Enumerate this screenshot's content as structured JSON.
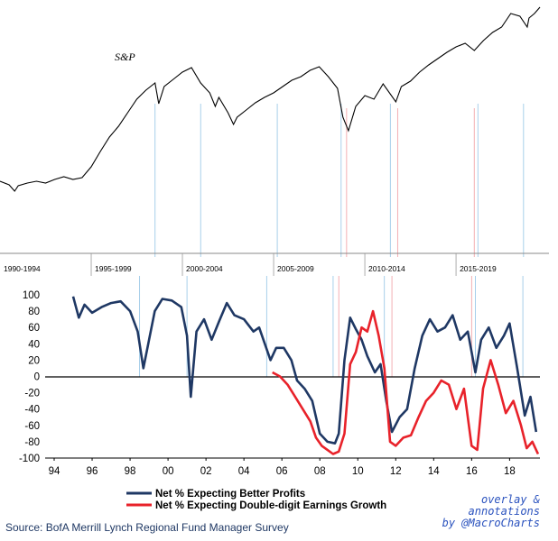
{
  "chart_data": [
    {
      "type": "line",
      "title": "S&P",
      "series": [
        {
          "name": "S&P",
          "color": "#000000"
        }
      ],
      "period_labels": [
        "1990-1994",
        "1995-1999",
        "2000-2004",
        "2005-2009",
        "2010-2014",
        "2015-2019"
      ],
      "x_range": [
        1990,
        2019.6
      ],
      "points": [
        [
          1990.0,
          201
        ],
        [
          1990.5,
          205
        ],
        [
          1990.8,
          212
        ],
        [
          1991.0,
          206
        ],
        [
          1991.5,
          203
        ],
        [
          1992.0,
          201
        ],
        [
          1992.5,
          203
        ],
        [
          1993.0,
          199
        ],
        [
          1993.5,
          196
        ],
        [
          1994.0,
          199
        ],
        [
          1994.5,
          197
        ],
        [
          1995.0,
          185
        ],
        [
          1995.5,
          168
        ],
        [
          1996.0,
          152
        ],
        [
          1996.5,
          140
        ],
        [
          1997.0,
          125
        ],
        [
          1997.5,
          110
        ],
        [
          1998.0,
          100
        ],
        [
          1998.5,
          92
        ],
        [
          1998.7,
          115
        ],
        [
          1999.0,
          96
        ],
        [
          1999.5,
          88
        ],
        [
          2000.0,
          80
        ],
        [
          2000.5,
          75
        ],
        [
          2001.0,
          92
        ],
        [
          2001.5,
          103
        ],
        [
          2001.8,
          118
        ],
        [
          2002.0,
          108
        ],
        [
          2002.5,
          125
        ],
        [
          2002.8,
          138
        ],
        [
          2003.0,
          130
        ],
        [
          2003.5,
          122
        ],
        [
          2004.0,
          114
        ],
        [
          2004.5,
          108
        ],
        [
          2005.0,
          103
        ],
        [
          2005.5,
          96
        ],
        [
          2006.0,
          89
        ],
        [
          2006.5,
          85
        ],
        [
          2007.0,
          78
        ],
        [
          2007.5,
          74
        ],
        [
          2008.0,
          85
        ],
        [
          2008.5,
          98
        ],
        [
          2008.8,
          130
        ],
        [
          2009.1,
          145
        ],
        [
          2009.5,
          118
        ],
        [
          2010.0,
          106
        ],
        [
          2010.5,
          110
        ],
        [
          2011.0,
          93
        ],
        [
          2011.7,
          113
        ],
        [
          2012.0,
          96
        ],
        [
          2012.5,
          90
        ],
        [
          2013.0,
          80
        ],
        [
          2013.5,
          72
        ],
        [
          2014.0,
          65
        ],
        [
          2014.5,
          58
        ],
        [
          2015.0,
          52
        ],
        [
          2015.5,
          48
        ],
        [
          2016.0,
          56
        ],
        [
          2016.5,
          45
        ],
        [
          2017.0,
          36
        ],
        [
          2017.5,
          30
        ],
        [
          2018.0,
          15
        ],
        [
          2018.5,
          18
        ],
        [
          2018.9,
          30
        ],
        [
          2019.0,
          20
        ],
        [
          2019.3,
          15
        ],
        [
          2019.6,
          8
        ]
      ]
    },
    {
      "type": "line",
      "x_ticks": [
        "94",
        "96",
        "98",
        "00",
        "02",
        "04",
        "06",
        "08",
        "10",
        "12",
        "14",
        "16",
        "18"
      ],
      "y_ticks": [
        100,
        80,
        60,
        40,
        20,
        0,
        -20,
        -40,
        -60,
        -80,
        -100
      ],
      "ylim": [
        -100,
        100
      ],
      "x_range": [
        1994,
        2019.6
      ],
      "legend": [
        "Net % Expecting Better Profits",
        "Net % Expecting Double-digit Earnings Growth"
      ],
      "series": [
        {
          "name": "Net % Expecting Better Profits",
          "color": "#1f3864",
          "points": [
            [
              1995.0,
              98
            ],
            [
              1995.3,
              72
            ],
            [
              1995.6,
              88
            ],
            [
              1996.0,
              78
            ],
            [
              1996.5,
              85
            ],
            [
              1997.0,
              90
            ],
            [
              1997.5,
              92
            ],
            [
              1998.0,
              80
            ],
            [
              1998.4,
              55
            ],
            [
              1998.7,
              10
            ],
            [
              1999.0,
              45
            ],
            [
              1999.3,
              80
            ],
            [
              1999.7,
              95
            ],
            [
              2000.2,
              93
            ],
            [
              2000.7,
              85
            ],
            [
              2001.0,
              50
            ],
            [
              2001.2,
              -25
            ],
            [
              2001.5,
              55
            ],
            [
              2001.9,
              70
            ],
            [
              2002.3,
              45
            ],
            [
              2002.7,
              68
            ],
            [
              2003.1,
              90
            ],
            [
              2003.5,
              75
            ],
            [
              2004.0,
              70
            ],
            [
              2004.5,
              55
            ],
            [
              2004.8,
              60
            ],
            [
              2005.1,
              40
            ],
            [
              2005.4,
              20
            ],
            [
              2005.7,
              35
            ],
            [
              2006.1,
              35
            ],
            [
              2006.5,
              20
            ],
            [
              2006.8,
              -5
            ],
            [
              2007.2,
              -15
            ],
            [
              2007.6,
              -30
            ],
            [
              2008.0,
              -70
            ],
            [
              2008.4,
              -80
            ],
            [
              2008.8,
              -82
            ],
            [
              2009.0,
              -70
            ],
            [
              2009.3,
              20
            ],
            [
              2009.6,
              72
            ],
            [
              2009.9,
              58
            ],
            [
              2010.2,
              45
            ],
            [
              2010.5,
              25
            ],
            [
              2010.9,
              5
            ],
            [
              2011.2,
              15
            ],
            [
              2011.5,
              -30
            ],
            [
              2011.8,
              -68
            ],
            [
              2012.2,
              -50
            ],
            [
              2012.6,
              -40
            ],
            [
              2013.0,
              10
            ],
            [
              2013.4,
              50
            ],
            [
              2013.8,
              70
            ],
            [
              2014.2,
              55
            ],
            [
              2014.6,
              60
            ],
            [
              2015.0,
              75
            ],
            [
              2015.4,
              45
            ],
            [
              2015.8,
              55
            ],
            [
              2016.2,
              5
            ],
            [
              2016.5,
              45
            ],
            [
              2016.9,
              60
            ],
            [
              2017.3,
              35
            ],
            [
              2017.7,
              50
            ],
            [
              2018.0,
              65
            ],
            [
              2018.4,
              10
            ],
            [
              2018.8,
              -48
            ],
            [
              2019.1,
              -25
            ],
            [
              2019.4,
              -68
            ]
          ]
        },
        {
          "name": "Net % Expecting Double-digit Earnings Growth",
          "color": "#e8222a",
          "points": [
            [
              2005.5,
              5
            ],
            [
              2005.9,
              0
            ],
            [
              2006.3,
              -10
            ],
            [
              2006.7,
              -25
            ],
            [
              2007.1,
              -40
            ],
            [
              2007.5,
              -55
            ],
            [
              2007.8,
              -75
            ],
            [
              2008.1,
              -85
            ],
            [
              2008.4,
              -90
            ],
            [
              2008.7,
              -95
            ],
            [
              2009.0,
              -92
            ],
            [
              2009.3,
              -70
            ],
            [
              2009.6,
              15
            ],
            [
              2009.9,
              30
            ],
            [
              2010.2,
              60
            ],
            [
              2010.5,
              55
            ],
            [
              2010.8,
              80
            ],
            [
              2011.1,
              50
            ],
            [
              2011.4,
              10
            ],
            [
              2011.7,
              -80
            ],
            [
              2012.0,
              -85
            ],
            [
              2012.4,
              -75
            ],
            [
              2012.8,
              -72
            ],
            [
              2013.2,
              -50
            ],
            [
              2013.6,
              -30
            ],
            [
              2014.0,
              -20
            ],
            [
              2014.4,
              -5
            ],
            [
              2014.8,
              -10
            ],
            [
              2015.2,
              -40
            ],
            [
              2015.6,
              -15
            ],
            [
              2016.0,
              -85
            ],
            [
              2016.3,
              -90
            ],
            [
              2016.6,
              -15
            ],
            [
              2017.0,
              20
            ],
            [
              2017.4,
              -10
            ],
            [
              2017.8,
              -45
            ],
            [
              2018.2,
              -30
            ],
            [
              2018.6,
              -60
            ],
            [
              2018.9,
              -88
            ],
            [
              2019.2,
              -80
            ],
            [
              2019.5,
              -95
            ]
          ]
        }
      ]
    }
  ],
  "annotation_years": [
    1998.5,
    2001.0,
    2005.2,
    2008.7,
    2011.4,
    2016.2,
    2018.7
  ],
  "red_marker_years": [
    2009.0,
    2011.8,
    2016.0
  ],
  "overlay_credit": [
    "overlay & annotations",
    "by @MacroCharts"
  ],
  "source": "Source:  BofA Merrill Lynch Regional Fund Manager Survey"
}
